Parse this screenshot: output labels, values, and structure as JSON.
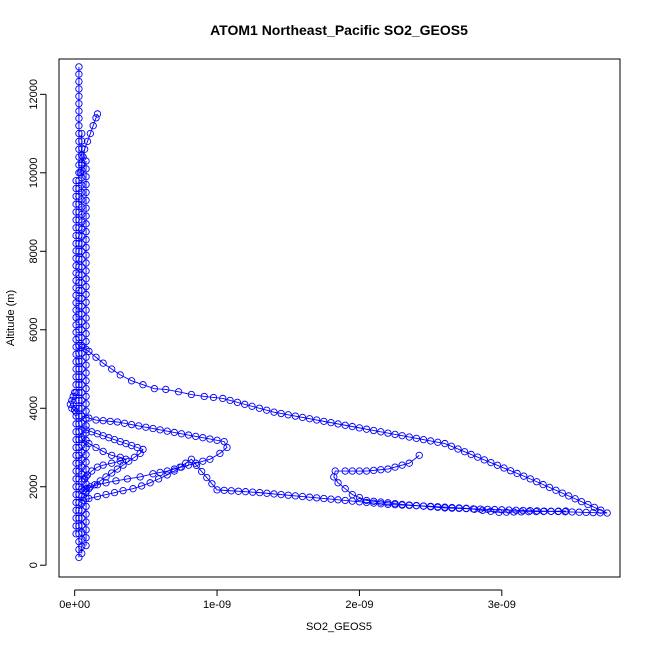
{
  "chart_data": {
    "type": "scatter",
    "title": "ATOM1 Northeast_Pacific SO2_GEOS5",
    "xlabel": "SO2_GEOS5",
    "ylabel": "Altitude (m)",
    "xlim": [
      -1.1e-10,
      3.83e-09
    ],
    "ylim": [
      -300,
      12900
    ],
    "x_ticks": [
      {
        "value": 0,
        "label": "0e+00"
      },
      {
        "value": 1e-09,
        "label": "1e-09"
      },
      {
        "value": 2e-09,
        "label": "2e-09"
      },
      {
        "value": 3e-09,
        "label": "3e-09"
      }
    ],
    "y_ticks": [
      {
        "value": 0,
        "label": "0"
      },
      {
        "value": 2000,
        "label": "2000"
      },
      {
        "value": 4000,
        "label": "4000"
      },
      {
        "value": 6000,
        "label": "6000"
      },
      {
        "value": 8000,
        "label": "8000"
      },
      {
        "value": 10000,
        "label": "10000"
      },
      {
        "value": 12000,
        "label": "12000"
      }
    ],
    "grid": false,
    "legend": "none",
    "series_color": "#0000ff",
    "segments": [
      {
        "x": [
          3e-11,
          3e-11,
          3e-11,
          3e-11,
          3e-11,
          3e-11,
          3e-11,
          3e-11,
          3e-11,
          3e-11
        ],
        "y": [
          200,
          1400,
          2800,
          4200,
          5600,
          7000,
          8400,
          9800,
          11200,
          12700
        ]
      },
      {
        "x": [
          5e-11,
          5e-11,
          5e-11,
          5e-11,
          5e-11,
          5e-11,
          5e-11,
          5e-11,
          5e-11
        ],
        "y": [
          300,
          1200,
          2500,
          3800,
          5200,
          6600,
          8000,
          9500,
          11000
        ]
      },
      {
        "x": [
          8e-11,
          8e-11,
          8e-11,
          8e-11,
          8e-11,
          8e-11,
          8e-11,
          8e-11
        ],
        "y": [
          500,
          1700,
          3000,
          4300,
          5700,
          7100,
          8700,
          10300
        ]
      },
      {
        "x": [
          1e-11,
          1e-11,
          1e-11,
          1e-11,
          1e-11,
          1e-11,
          1e-11
        ],
        "y": [
          800,
          2200,
          3600,
          5000,
          6500,
          8200,
          9800
        ]
      },
      {
        "x": [
          1.6e-10,
          1.5e-10,
          1.3e-10,
          1.1e-10,
          9e-11,
          7e-11,
          6e-11,
          5e-11,
          4e-11
        ],
        "y": [
          11500,
          11400,
          11200,
          11000,
          10800,
          10600,
          10400,
          10200,
          10000
        ]
      },
      {
        "x": [
          3e-11,
          5e-11,
          1e-10,
          1.5e-10,
          2e-10,
          2.6e-10,
          3.2e-10,
          4e-10,
          4.8e-10,
          5.6e-10,
          6.4e-10,
          7.3e-10,
          8.2e-10,
          9.1e-10,
          1.04e-09,
          1.4e-09,
          2e-09,
          2.6e-09,
          3.2e-09,
          3.74e-09,
          3.1e-09,
          2.6e-09,
          2.3e-09,
          2.05e-09,
          1.95e-09,
          1.9e-09,
          1.85e-09,
          1.82e-09,
          1.83e-09,
          1.9e-09,
          2.05e-09,
          2.2e-09,
          2.35e-09,
          2.42e-09
        ],
        "y": [
          5600,
          5550,
          5450,
          5300,
          5150,
          5000,
          4850,
          4700,
          4600,
          4500,
          4480,
          4420,
          4350,
          4300,
          4250,
          3900,
          3500,
          3100,
          2200,
          1330,
          1400,
          1460,
          1550,
          1650,
          1800,
          1950,
          2100,
          2250,
          2400,
          2400,
          2400,
          2450,
          2600,
          2800
        ]
      },
      {
        "x": [
          0,
          -1e-11,
          -2e-11,
          -3e-11,
          -2e-11,
          0,
          1e-11
        ],
        "y": [
          4400,
          4300,
          4200,
          4100,
          4000,
          3950,
          3900
        ]
      },
      {
        "x": [
          5e-11,
          1.5e-10,
          3e-10,
          4.5e-10,
          6e-10,
          7.5e-10,
          9e-10,
          1.05e-09,
          1.07e-09,
          1.02e-09,
          9.5e-10,
          8.5e-10,
          7.5e-10,
          6.5e-10,
          5.5e-10,
          4.6e-10,
          3.7e-10,
          2.9e-10,
          2.2e-10,
          1.6e-10,
          1.1e-10,
          8e-11,
          6e-11
        ],
        "y": [
          3800,
          3700,
          3650,
          3550,
          3450,
          3350,
          3250,
          3150,
          3000,
          2850,
          2700,
          2600,
          2500,
          2400,
          2330,
          2250,
          2200,
          2150,
          2100,
          2050,
          2000,
          1950,
          1900
        ]
      },
      {
        "x": [
          6e-11,
          1e-10,
          1.6e-10,
          2.2e-10,
          2.8e-10,
          3.4e-10,
          4.1e-10,
          4.7e-10,
          5.3e-10,
          5.9e-10,
          6.5e-10,
          7e-10,
          7.4e-10,
          7.8e-10,
          8.2e-10,
          1e-09,
          1.3e-09,
          1.6e-09,
          1.9e-09,
          2.2e-09,
          2.5e-09,
          2.75e-09,
          2.98e-09,
          3.45e-09
        ],
        "y": [
          1650,
          1700,
          1750,
          1800,
          1850,
          1900,
          1950,
          2020,
          2100,
          2200,
          2300,
          2400,
          2500,
          2600,
          2700,
          1920,
          1850,
          1750,
          1650,
          1550,
          1500,
          1450,
          1350,
          1380
        ]
      },
      {
        "x": [
          8e-11,
          1.2e-10,
          1.6e-10,
          2e-10,
          2.4e-10,
          2.8e-10,
          3.2e-10,
          3.6e-10,
          4e-10,
          4.4e-10,
          4.8e-10,
          4.6e-10,
          4.2e-10,
          3.8e-10,
          3.4e-10,
          3e-10,
          2.6e-10,
          2.2e-10,
          1.8e-10,
          1.4e-10,
          1e-10,
          8e-11
        ],
        "y": [
          3450,
          3400,
          3350,
          3300,
          3250,
          3200,
          3150,
          3100,
          3050,
          3000,
          2950,
          2850,
          2750,
          2650,
          2550,
          2450,
          2350,
          2250,
          2150,
          2050,
          1950,
          1850
        ]
      },
      {
        "x": [
          5e-11,
          1e-10,
          1.5e-10,
          2e-10,
          2.6e-10,
          3.2e-10,
          3.6e-10,
          3.2e-10,
          2.6e-10,
          2e-10,
          1.6e-10,
          1.2e-10,
          9e-11,
          7e-11
        ],
        "y": [
          3200,
          3100,
          3000,
          2900,
          2800,
          2750,
          2700,
          2650,
          2600,
          2550,
          2500,
          2400,
          2300,
          2200
        ]
      }
    ]
  }
}
